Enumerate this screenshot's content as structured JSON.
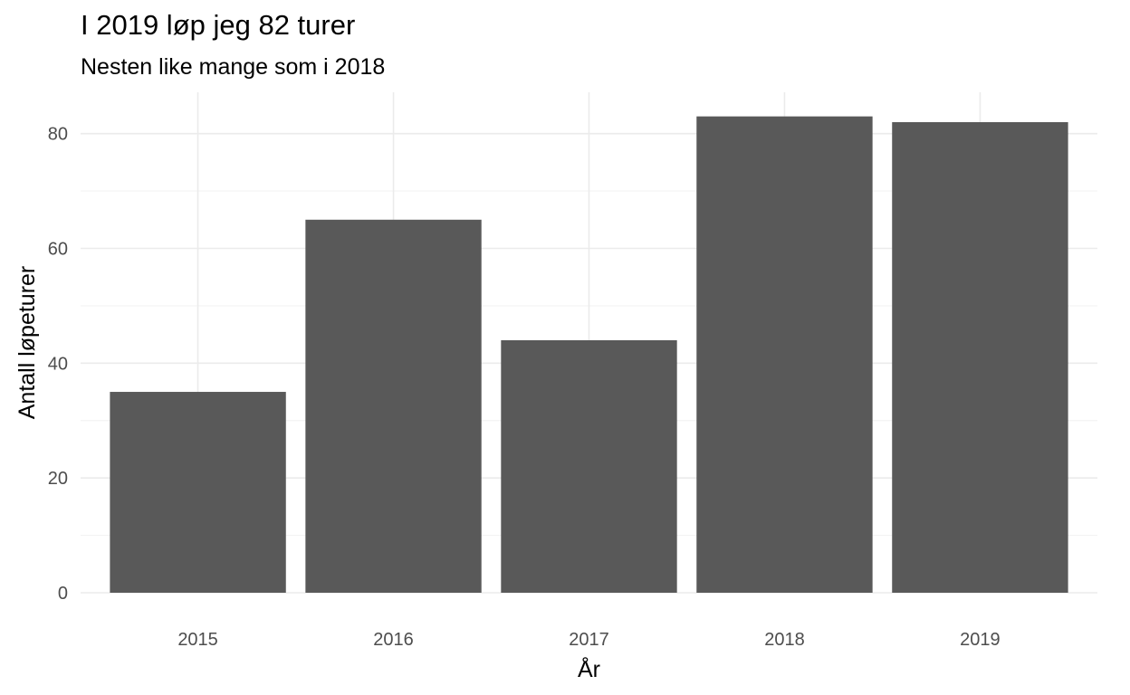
{
  "chart_data": {
    "type": "bar",
    "title": "I 2019 løp jeg 82 turer",
    "subtitle": "Nesten like mange som i 2018",
    "xlabel": "År",
    "ylabel": "Antall løpeturer",
    "categories": [
      "2015",
      "2016",
      "2017",
      "2018",
      "2019"
    ],
    "values": [
      35,
      65,
      44,
      83,
      82
    ],
    "ylim": [
      0,
      87.2
    ],
    "yticks": [
      0,
      20,
      40,
      60,
      80
    ],
    "grid": true,
    "legend": "none",
    "colors": {
      "bar": "#595959",
      "grid_major": "#ebebeb",
      "grid_minor": "#f3f3f3"
    }
  }
}
